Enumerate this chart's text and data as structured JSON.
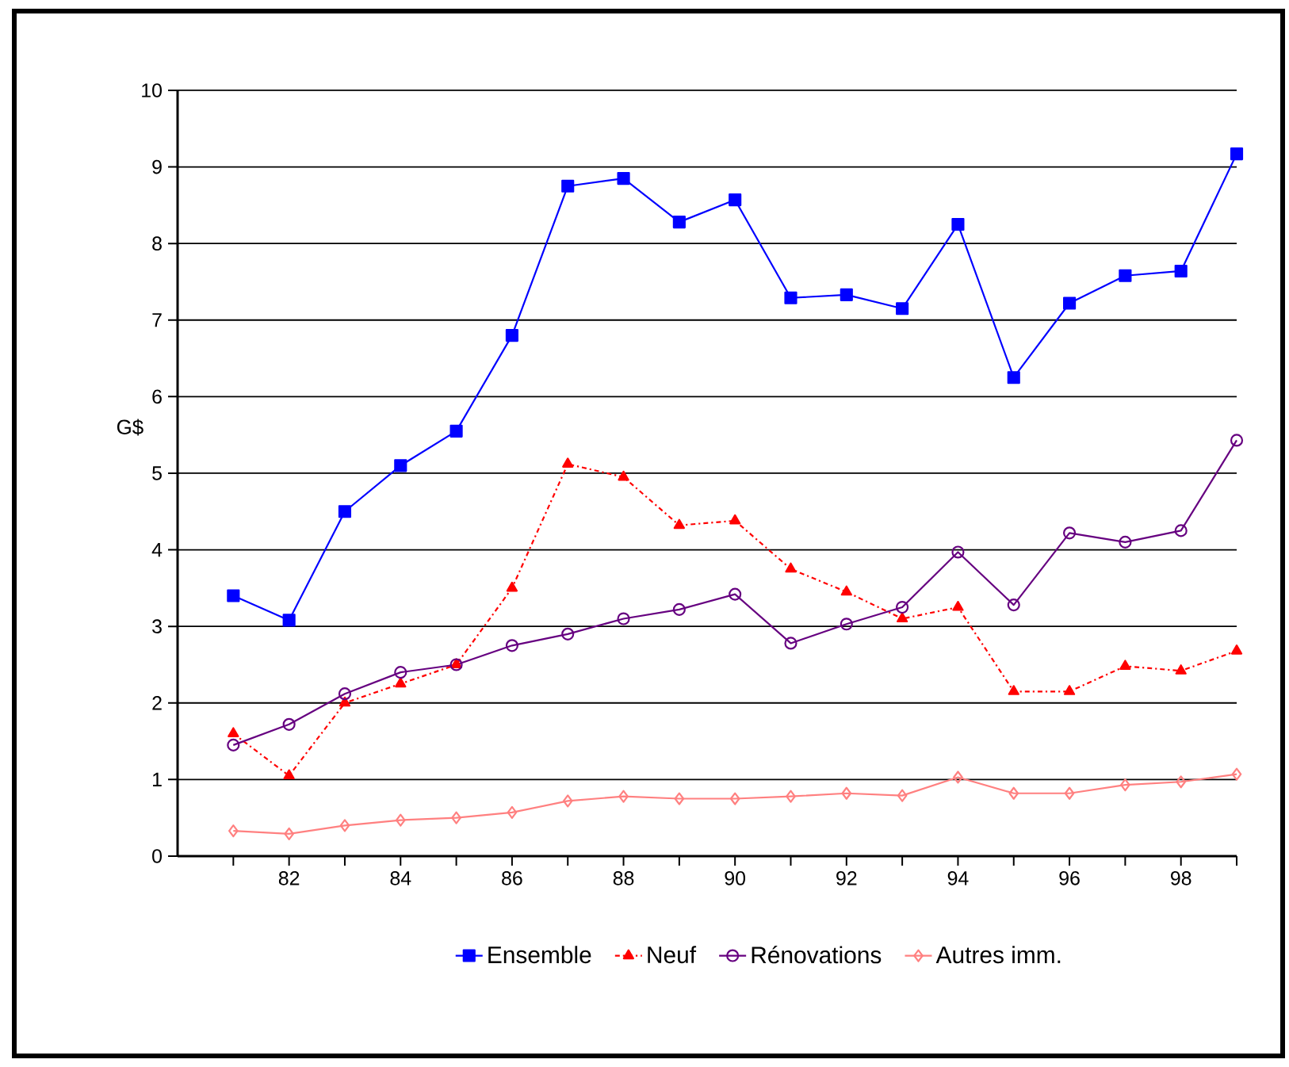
{
  "chart_data": {
    "type": "line",
    "ylabel": "G$",
    "x": [
      81,
      82,
      83,
      84,
      85,
      86,
      87,
      88,
      89,
      90,
      91,
      92,
      93,
      94,
      95,
      96,
      97,
      98,
      99
    ],
    "xlim": [
      80,
      99
    ],
    "xticks": [
      {
        "value": 81,
        "label": null
      },
      82,
      {
        "value": 83,
        "label": null
      },
      84,
      {
        "value": 85,
        "label": null
      },
      86,
      {
        "value": 87,
        "label": null
      },
      88,
      {
        "value": 89,
        "label": null
      },
      90,
      {
        "value": 91,
        "label": null
      },
      92,
      {
        "value": 93,
        "label": null
      },
      94,
      {
        "value": 95,
        "label": null
      },
      96,
      {
        "value": 97,
        "label": null
      },
      98,
      {
        "value": 99,
        "label": null
      }
    ],
    "ylim": [
      0,
      10
    ],
    "yticks": [
      0,
      1,
      2,
      3,
      4,
      5,
      6,
      7,
      8,
      9,
      10
    ],
    "grid": "y",
    "legend": "bottom",
    "series": [
      {
        "name": "Ensemble",
        "color": "#0000ff",
        "marker": "square",
        "line_style": "solid",
        "values": [
          3.4,
          3.08,
          4.5,
          5.1,
          5.55,
          6.8,
          8.75,
          8.85,
          8.28,
          8.57,
          7.29,
          7.33,
          7.15,
          8.25,
          6.25,
          7.22,
          7.58,
          7.64,
          9.17
        ]
      },
      {
        "name": "Neuf",
        "color": "#ff0000",
        "marker": "triangle",
        "line_style": "dashed",
        "values": [
          1.6,
          1.05,
          2.0,
          2.25,
          2.5,
          3.5,
          5.12,
          4.95,
          4.32,
          4.38,
          3.75,
          3.45,
          3.1,
          3.25,
          2.15,
          2.15,
          2.48,
          2.42,
          2.68
        ]
      },
      {
        "name": "Rénovations",
        "color": "#660080",
        "marker": "circle",
        "line_style": "solid",
        "values": [
          1.45,
          1.72,
          2.12,
          2.4,
          2.5,
          2.75,
          2.9,
          3.1,
          3.22,
          3.42,
          2.78,
          3.03,
          3.25,
          3.97,
          3.28,
          4.22,
          4.1,
          4.25,
          5.43
        ]
      },
      {
        "name": "Autres imm.",
        "color": "#ff8080",
        "marker": "diamond",
        "line_style": "solid",
        "values": [
          0.33,
          0.29,
          0.4,
          0.47,
          0.5,
          0.57,
          0.72,
          0.78,
          0.75,
          0.75,
          0.78,
          0.82,
          0.79,
          1.03,
          0.82,
          0.82,
          0.93,
          0.97,
          1.07
        ]
      }
    ]
  }
}
